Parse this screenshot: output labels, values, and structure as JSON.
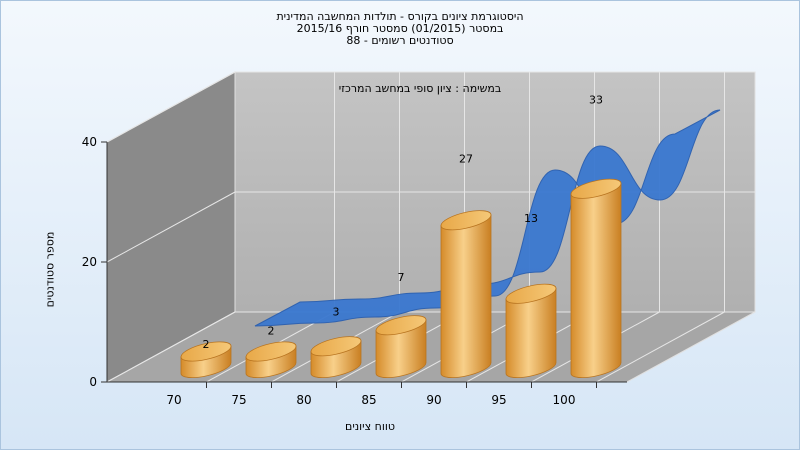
{
  "titles": {
    "line1": "היסטוגרמת ציונים בקורס - תולדות המחשבה המדינית",
    "line2": "במסטר  (01/2015)  סמסטר חורף 2015/16",
    "line3": "סטודנטים רשומים - 88"
  },
  "chart_data": {
    "type": "bar",
    "title": "היסטוגרמת ציונים בקורס - תולדות המחשבה המדינית",
    "subtitle": "במשימה : ציון סופי במחשב המרכזי",
    "xlabel": "טווח ציונים",
    "ylabel": "מספר סטודנטים",
    "categories": [
      "70",
      "75",
      "80",
      "85",
      "90",
      "95",
      "100"
    ],
    "values": [
      2,
      2,
      3,
      7,
      27,
      13,
      33
    ],
    "y_ticks": [
      "0",
      "20",
      "40"
    ],
    "ylim": [
      0,
      40
    ],
    "curve": [
      1,
      1.5,
      2.5,
      4,
      6,
      27,
      18,
      33
    ],
    "colors": {
      "bar": "#e3a040",
      "bar_light": "#f8d08a",
      "curve": "#3a78d0",
      "wall_back": "#b8b8b8",
      "wall_left": "#8a8a8a",
      "floor": "#a8a8a8"
    }
  }
}
